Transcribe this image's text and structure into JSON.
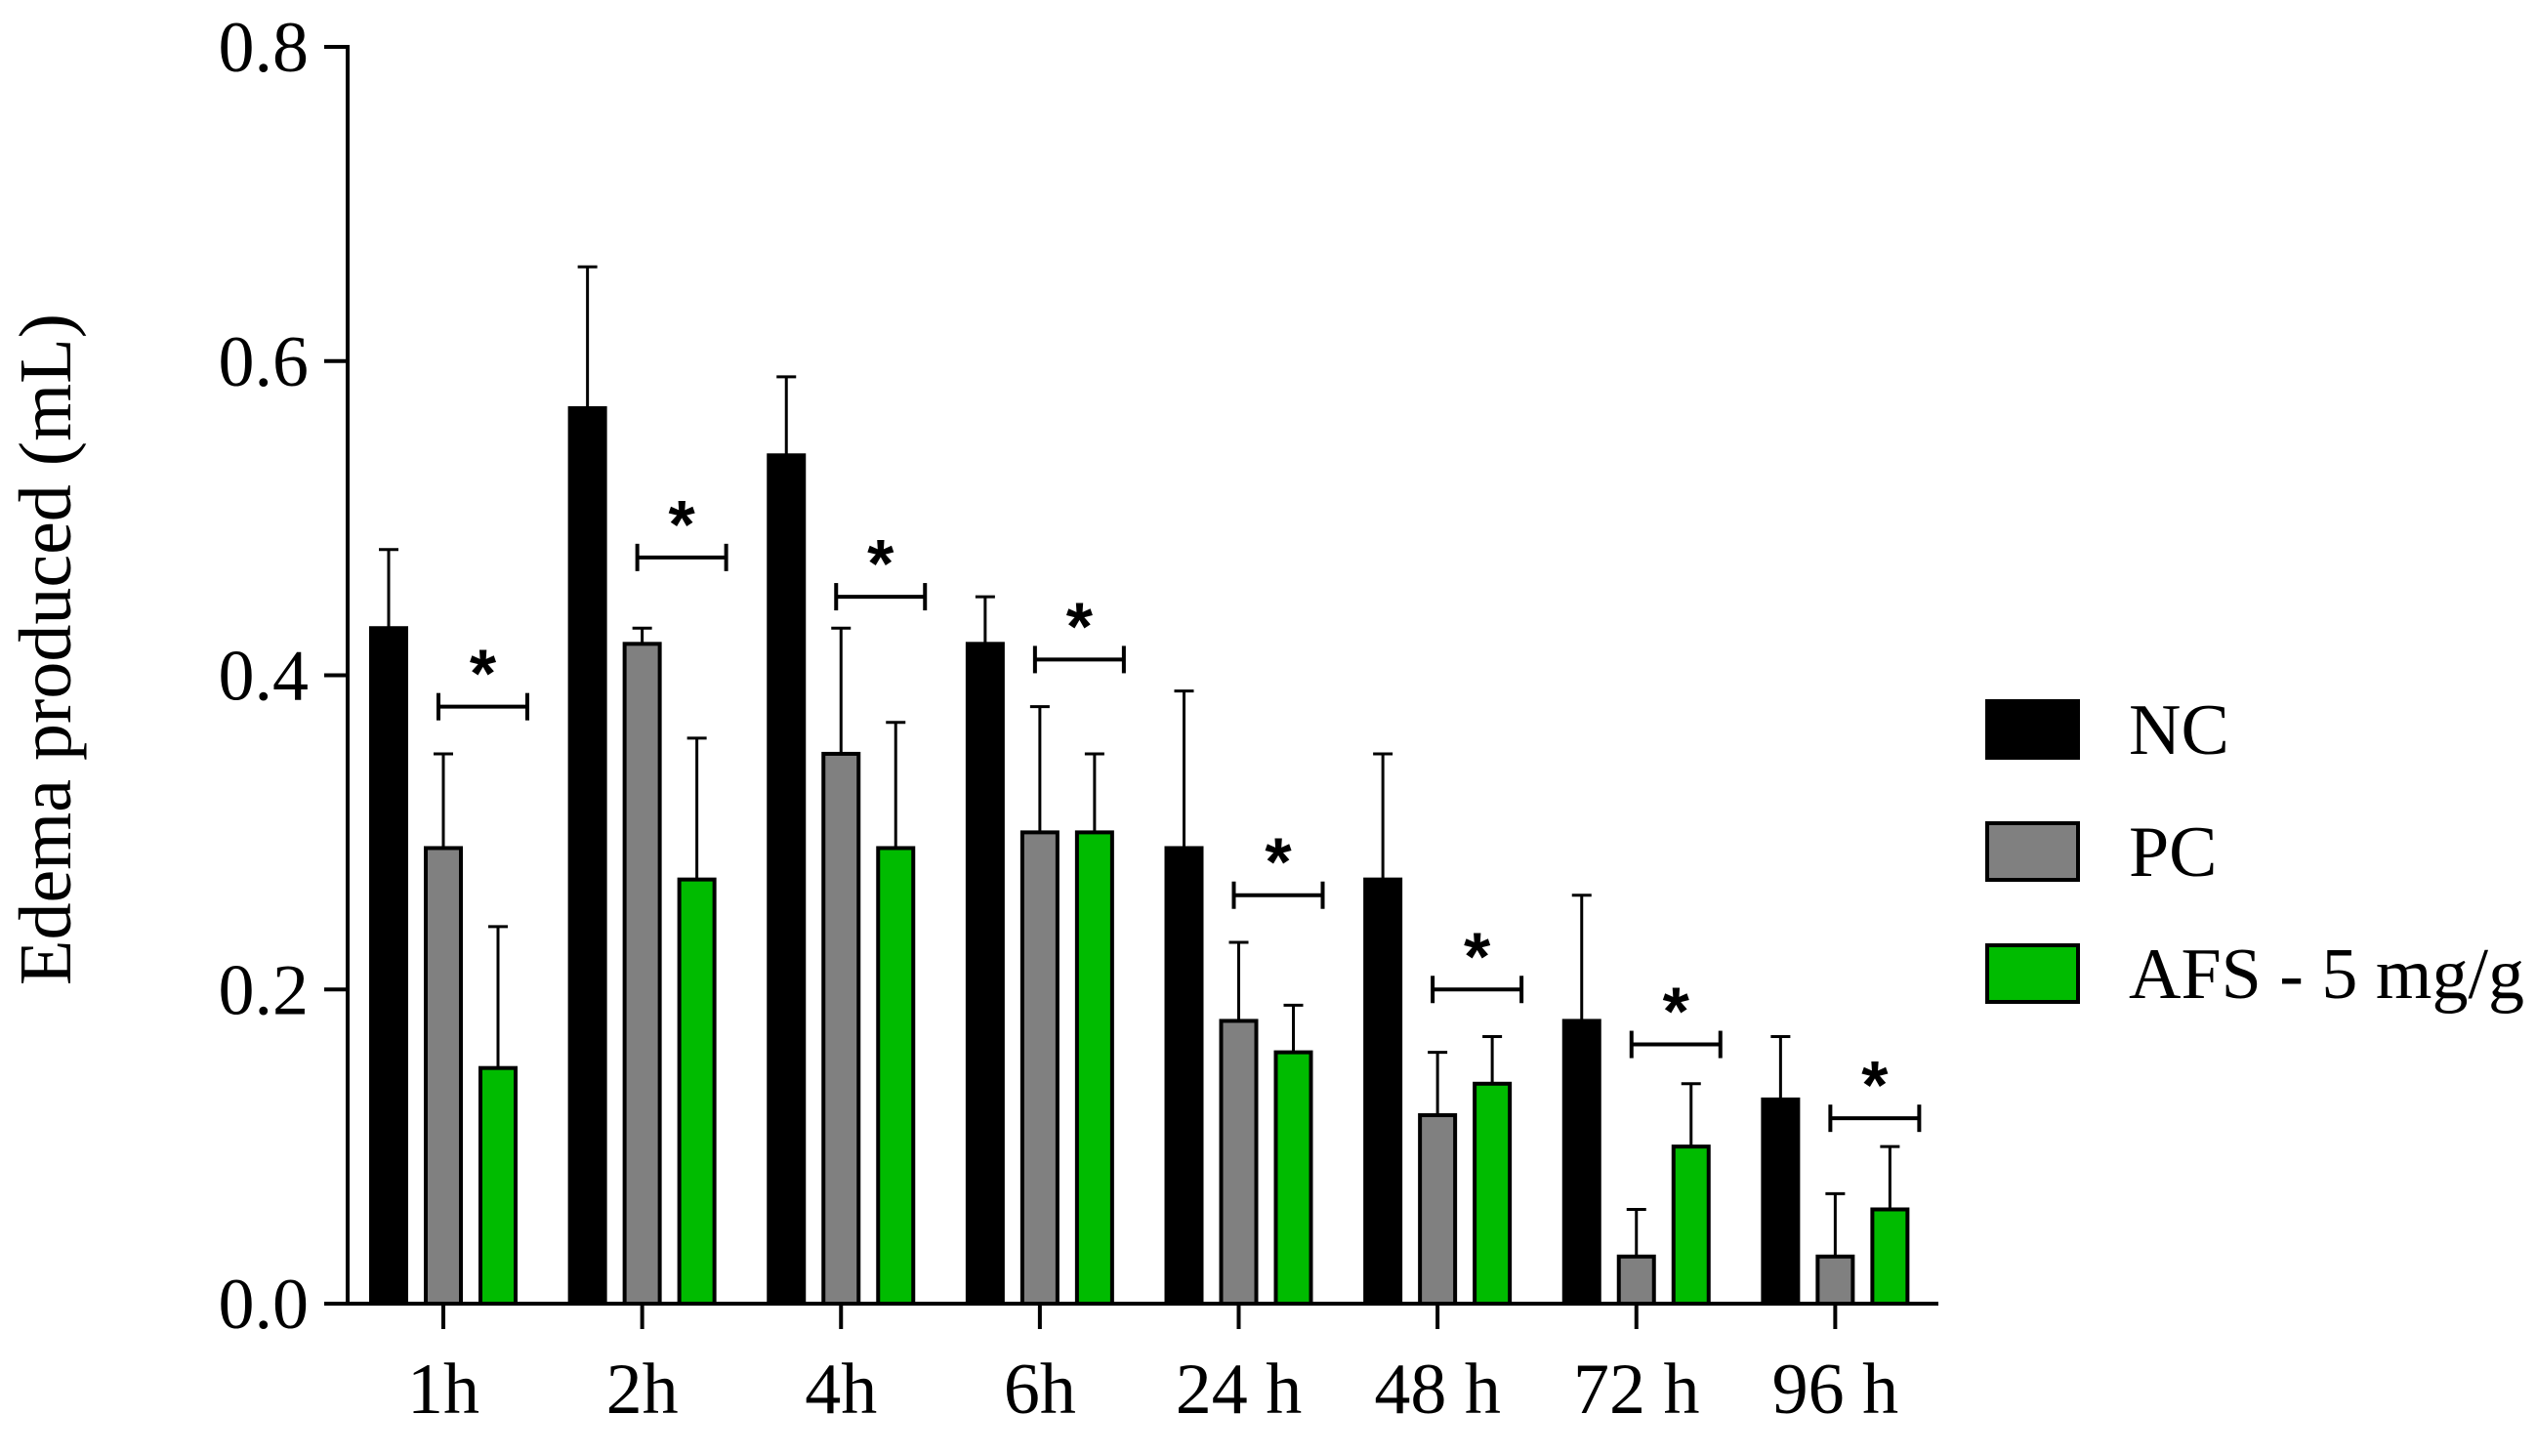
{
  "chart_data": {
    "type": "bar",
    "title": "",
    "xlabel": "",
    "ylabel": "Edema produced (mL)",
    "ylim": [
      0,
      0.8
    ],
    "yticks": [
      "0.0",
      "0.2",
      "0.4",
      "0.6",
      "0.8"
    ],
    "ytick_values": [
      0,
      0.2,
      0.4,
      0.6,
      0.8
    ],
    "categories": [
      "1h",
      "2h",
      "4h",
      "6h",
      "24 h",
      "48 h",
      "72 h",
      "96 h"
    ],
    "series": [
      {
        "name": "NC",
        "color": "#000000",
        "values": [
          0.43,
          0.57,
          0.54,
          0.42,
          0.29,
          0.27,
          0.18,
          0.13
        ],
        "errors": [
          0.05,
          0.09,
          0.05,
          0.03,
          0.1,
          0.08,
          0.08,
          0.04
        ]
      },
      {
        "name": "PC",
        "color": "#808080",
        "values": [
          0.29,
          0.42,
          0.35,
          0.3,
          0.18,
          0.12,
          0.03,
          0.03
        ],
        "errors": [
          0.06,
          0.01,
          0.08,
          0.08,
          0.05,
          0.04,
          0.03,
          0.04
        ]
      },
      {
        "name": "AFS - 5 mg/g",
        "color": "#00bb00",
        "values": [
          0.15,
          0.27,
          0.29,
          0.3,
          0.16,
          0.14,
          0.1,
          0.06
        ],
        "errors": [
          0.09,
          0.09,
          0.08,
          0.05,
          0.03,
          0.03,
          0.04,
          0.04
        ]
      }
    ],
    "significance": {
      "symbol": "*",
      "comparisons": [
        {
          "category": "1h",
          "y": 0.38
        },
        {
          "category": "2h",
          "y": 0.475
        },
        {
          "category": "4h",
          "y": 0.45
        },
        {
          "category": "6h",
          "y": 0.41
        },
        {
          "category": "24 h",
          "y": 0.26
        },
        {
          "category": "48 h",
          "y": 0.2
        },
        {
          "category": "72 h",
          "y": 0.165
        },
        {
          "category": "96 h",
          "y": 0.118
        }
      ]
    },
    "legend_position": "right",
    "grid": false
  }
}
